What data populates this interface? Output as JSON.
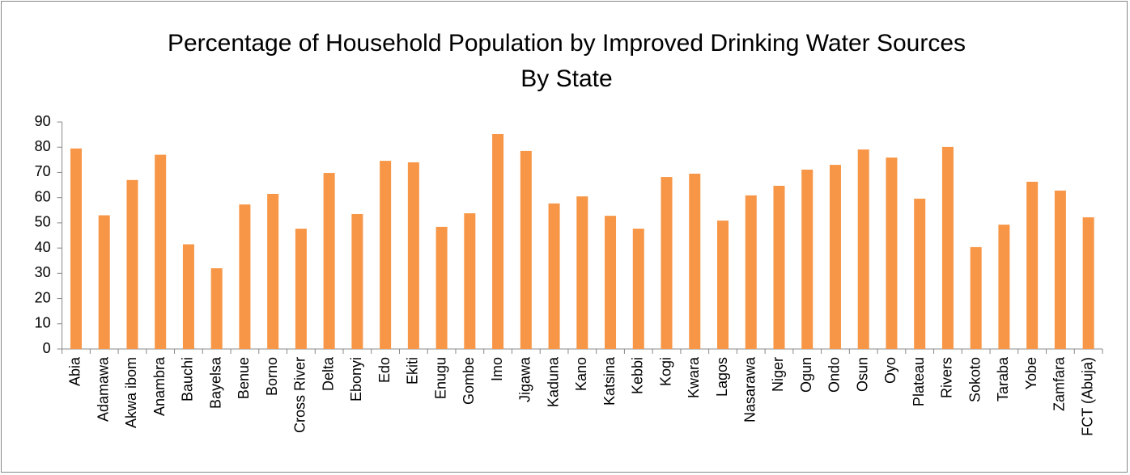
{
  "chart_data": {
    "type": "bar",
    "title": "Percentage of Household Population by Improved Drinking Water Sources By State",
    "categories": [
      "Abia",
      "Adamawa",
      "Akwa ibom",
      "Anambra",
      "Bauchi",
      "Bayelsa",
      "Benue",
      "Borno",
      "Cross River",
      "Delta",
      "Ebonyi",
      "Edo",
      "Ekiti",
      "Enugu",
      "Gombe",
      "Imo",
      "Jigawa",
      "Kaduna",
      "Kano",
      "Katsina",
      "Kebbi",
      "Kogi",
      "Kwara",
      "Lagos",
      "Nasarawa",
      "Niger",
      "Ogun",
      "Ondo",
      "Osun",
      "Oyo",
      "Plateau",
      "Rivers",
      "Sokoto",
      "Taraba",
      "Yobe",
      "Zamfara",
      "FCT (Abuja)"
    ],
    "values": [
      79.5,
      53,
      67,
      77,
      41.5,
      32,
      57.3,
      61.5,
      47.7,
      69.8,
      53.5,
      74.6,
      74,
      48.4,
      53.8,
      85.2,
      78.5,
      57.7,
      60.5,
      52.8,
      47.7,
      68.2,
      69.5,
      50.9,
      60.9,
      64.7,
      71.1,
      73,
      79.1,
      75.9,
      59.6,
      80.1,
      40.4,
      49.3,
      66.3,
      62.8,
      52.2
    ],
    "color": "#f79646",
    "ylim": [
      0,
      90
    ],
    "yticks": [
      0,
      10,
      20,
      30,
      40,
      50,
      60,
      70,
      80,
      90
    ],
    "grid": false
  }
}
